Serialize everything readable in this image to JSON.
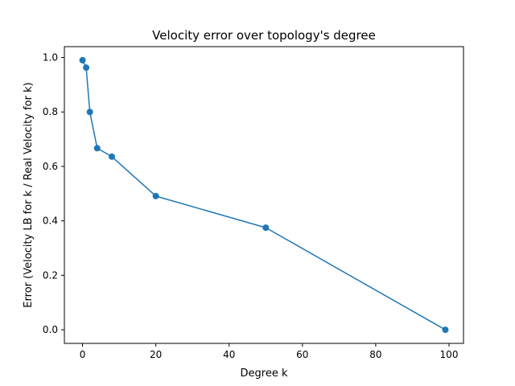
{
  "chart_data": {
    "type": "line",
    "title": "Velocity error over topology's degree",
    "xlabel": "Degree k",
    "ylabel": "Error (Velocity LB for k / Real Velocity for k)",
    "xlim": [
      -4.95,
      103.95
    ],
    "ylim": [
      -0.05,
      1.04
    ],
    "xticks": [
      0,
      20,
      40,
      60,
      80,
      100
    ],
    "yticks": [
      0.0,
      0.2,
      0.4,
      0.6,
      0.8,
      1.0
    ],
    "xtick_labels": [
      "0",
      "20",
      "40",
      "60",
      "80",
      "100"
    ],
    "ytick_labels": [
      "0.0",
      "0.2",
      "0.4",
      "0.6",
      "0.8",
      "1.0"
    ],
    "grid": false,
    "series": [
      {
        "x": [
          0,
          1,
          2,
          4,
          8,
          20,
          50,
          99
        ],
        "y": [
          0.99,
          0.963,
          0.8,
          0.667,
          0.636,
          0.491,
          0.375,
          0.0
        ],
        "color": "#1f77b4",
        "marker": "circle"
      }
    ]
  }
}
